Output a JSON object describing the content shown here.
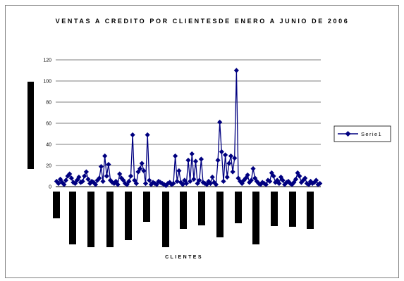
{
  "chart_data": {
    "type": "line",
    "title": "VENTAS A CREDITO POR CLIENTESDE ENERO A JUNIO DE 2006",
    "xlabel": "CLIENTES",
    "ylabel": "",
    "ylim": [
      0,
      120
    ],
    "yticks": [
      "0",
      "20",
      "40",
      "60",
      "80",
      "100",
      "120"
    ],
    "grid": true,
    "legend": "right",
    "series": [
      {
        "name": "Serie1",
        "color": "#000080",
        "marker": "diamond",
        "values": [
          5,
          3,
          7,
          4,
          2,
          6,
          10,
          12,
          8,
          4,
          3,
          6,
          9,
          4,
          5,
          10,
          14,
          7,
          3,
          5,
          4,
          2,
          6,
          8,
          19,
          5,
          29,
          10,
          21,
          6,
          4,
          3,
          5,
          2,
          12,
          8,
          6,
          3,
          2,
          5,
          10,
          49,
          6,
          3,
          14,
          17,
          22,
          15,
          3,
          49,
          6,
          2,
          4,
          3,
          2,
          5,
          4,
          3,
          2,
          1,
          3,
          4,
          2,
          3,
          29,
          5,
          15,
          4,
          2,
          6,
          3,
          25,
          5,
          31,
          7,
          24,
          3,
          6,
          26,
          4,
          3,
          2,
          5,
          3,
          9,
          4,
          2,
          25,
          61,
          33,
          5,
          30,
          9,
          22,
          29,
          14,
          27,
          110,
          8,
          5,
          3,
          6,
          8,
          11,
          4,
          6,
          17,
          8,
          5,
          3,
          2,
          4,
          3,
          2,
          6,
          5,
          13,
          10,
          4,
          6,
          3,
          9,
          6,
          2,
          4,
          5,
          3,
          2,
          4,
          7,
          13,
          10,
          4,
          6,
          8,
          3,
          2,
          5,
          3,
          4,
          6,
          2,
          3
        ]
      }
    ]
  }
}
